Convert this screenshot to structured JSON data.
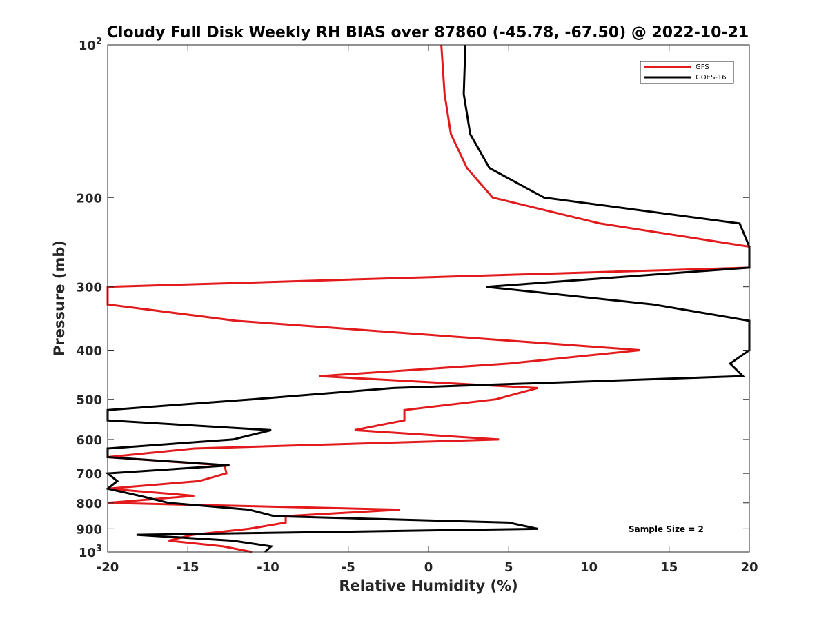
{
  "chart_data": {
    "type": "line",
    "title": "Cloudy Full Disk Weekly RH BIAS over 87860 (-45.78, -67.50) @ 2022-10-21",
    "xlabel": "Relative Humidity (%)",
    "ylabel": "Pressure (mb)",
    "xlim": [
      -20,
      20
    ],
    "ylim": [
      100,
      1000
    ],
    "yscale": "log",
    "y_reversed": true,
    "grid": false,
    "legend_position": "top-right",
    "x_ticks": [
      "-20",
      "-15",
      "-10",
      "-5",
      "0",
      "5",
      "10",
      "15",
      "20"
    ],
    "y_ticks": [
      {
        "value": 100,
        "base": "10",
        "exp": "2"
      },
      {
        "value": 200,
        "label": "200"
      },
      {
        "value": 300,
        "label": "300"
      },
      {
        "value": 400,
        "label": "400"
      },
      {
        "value": 500,
        "label": "500"
      },
      {
        "value": 600,
        "label": "600"
      },
      {
        "value": 700,
        "label": "700"
      },
      {
        "value": 800,
        "label": "800"
      },
      {
        "value": 900,
        "label": "900"
      },
      {
        "value": 1000,
        "base": "10",
        "exp": "3"
      }
    ],
    "series": [
      {
        "name": "GFS",
        "color": "#e31a1c",
        "points": [
          [
            0.8,
            100
          ],
          [
            1.0,
            125
          ],
          [
            1.4,
            150
          ],
          [
            2.4,
            175
          ],
          [
            4.0,
            200
          ],
          [
            10.7,
            225
          ],
          [
            20.0,
            250
          ],
          [
            20.0,
            275
          ],
          [
            -20.0,
            300
          ],
          [
            -20.0,
            325
          ],
          [
            -12.0,
            350
          ],
          [
            13.2,
            400
          ],
          [
            5.0,
            425
          ],
          [
            -6.8,
            450
          ],
          [
            6.8,
            475
          ],
          [
            4.2,
            500
          ],
          [
            -1.5,
            525
          ],
          [
            -1.5,
            550
          ],
          [
            -4.6,
            575
          ],
          [
            4.4,
            600
          ],
          [
            -14.6,
            625
          ],
          [
            -20.0,
            650
          ],
          [
            -12.7,
            675
          ],
          [
            -12.6,
            700
          ],
          [
            -14.3,
            725
          ],
          [
            -20.0,
            750
          ],
          [
            -14.6,
            775
          ],
          [
            -20.0,
            800
          ],
          [
            -1.8,
            825
          ],
          [
            -8.9,
            850
          ],
          [
            -8.9,
            875
          ],
          [
            -11.2,
            900
          ],
          [
            -14.7,
            925
          ],
          [
            -16.2,
            950
          ],
          [
            -12.8,
            975
          ],
          [
            -11.0,
            1000
          ]
        ]
      },
      {
        "name": "GOES-16",
        "color": "#000000",
        "points": [
          [
            2.3,
            100
          ],
          [
            2.2,
            125
          ],
          [
            2.6,
            150
          ],
          [
            3.8,
            175
          ],
          [
            7.2,
            200
          ],
          [
            19.4,
            225
          ],
          [
            20.0,
            250
          ],
          [
            20.0,
            275
          ],
          [
            3.6,
            300
          ],
          [
            14.0,
            325
          ],
          [
            20.0,
            350
          ],
          [
            20.0,
            400
          ],
          [
            18.8,
            425
          ],
          [
            19.6,
            450
          ],
          [
            -2.2,
            475
          ],
          [
            -11.0,
            500
          ],
          [
            -20.0,
            525
          ],
          [
            -20.0,
            550
          ],
          [
            -9.8,
            575
          ],
          [
            -12.2,
            600
          ],
          [
            -20.0,
            625
          ],
          [
            -20.0,
            650
          ],
          [
            -12.4,
            675
          ],
          [
            -20.0,
            700
          ],
          [
            -19.4,
            725
          ],
          [
            -20.0,
            750
          ],
          [
            -18.0,
            775
          ],
          [
            -16.2,
            800
          ],
          [
            -11.2,
            825
          ],
          [
            -9.6,
            850
          ],
          [
            5.0,
            875
          ],
          [
            6.8,
            900
          ],
          [
            -18.2,
            925
          ],
          [
            -12.2,
            950
          ],
          [
            -9.8,
            975
          ],
          [
            -10.2,
            1000
          ]
        ]
      }
    ],
    "annotation": "Sample Size = 2"
  }
}
